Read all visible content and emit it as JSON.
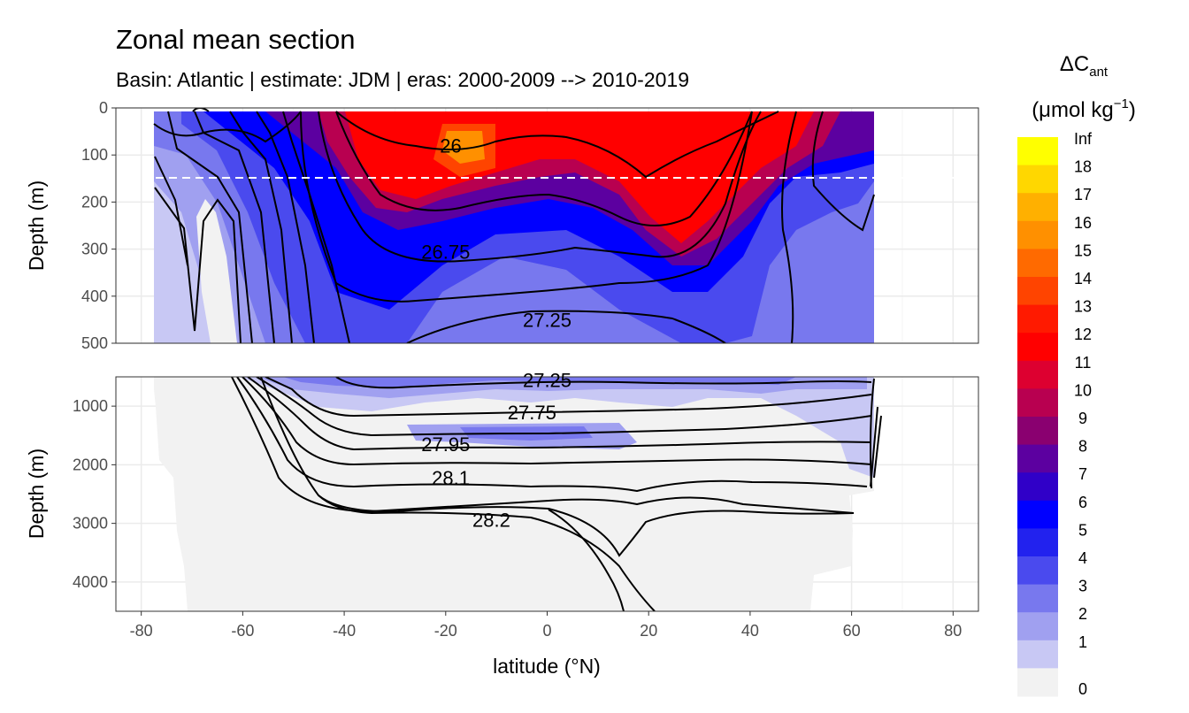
{
  "title": "Zonal mean section",
  "subtitle": "Basin: Atlantic | estimate: JDM  | eras: 2000-2009 --> 2010-2019",
  "chart_data": {
    "type": "heatmap",
    "xlabel": "latitude (°N)",
    "ylabel": "Depth (m)",
    "xlim": [
      -85,
      85
    ],
    "x_ticks": [
      -80,
      -60,
      -40,
      -20,
      0,
      20,
      40,
      60,
      80
    ],
    "panels": [
      {
        "name": "upper",
        "ylim": [
          500,
          0
        ],
        "y_ticks": [
          0,
          100,
          200,
          300,
          400,
          500
        ]
      },
      {
        "name": "lower",
        "ylim": [
          4500,
          500
        ],
        "y_ticks": [
          1000,
          2000,
          3000,
          4000
        ]
      }
    ],
    "data_extent": {
      "lat_min": -77.5,
      "lat_max": 64.5
    },
    "reference_line_depth": 150,
    "contour_labels": [
      {
        "text": "26",
        "lat": -19,
        "depth": 80,
        "panel": 0
      },
      {
        "text": "26.75",
        "lat": -20,
        "depth": 305,
        "panel": 0
      },
      {
        "text": "27.25",
        "lat": 0,
        "depth": 450,
        "panel": 0
      },
      {
        "text": "27.25",
        "lat": 0,
        "depth": 550,
        "panel": 1
      },
      {
        "text": "27.75",
        "lat": -3,
        "depth": 1100,
        "panel": 1
      },
      {
        "text": "27.95",
        "lat": -20,
        "depth": 1650,
        "panel": 1
      },
      {
        "text": "28.1",
        "lat": -19,
        "depth": 2220,
        "panel": 1
      },
      {
        "text": "28.2",
        "lat": -11,
        "depth": 2940,
        "panel": 1
      }
    ],
    "colorbar": {
      "title": "ΔC",
      "title_sub": "ant",
      "unit": "(μmol kg",
      "unit_sup": "−1",
      "unit_end": ")",
      "labels": [
        "Inf",
        "18",
        "17",
        "16",
        "15",
        "14",
        "13",
        "12",
        "11",
        "10",
        "9",
        "8",
        "7",
        "6",
        "5",
        "4",
        "3",
        "2",
        "1",
        "0"
      ],
      "colors": [
        "#ffff00",
        "#ffd700",
        "#ffb000",
        "#ff9000",
        "#ff6a00",
        "#ff4400",
        "#ff1a00",
        "#ff0000",
        "#dd0030",
        "#b80050",
        "#8a0070",
        "#5c00a0",
        "#3000c8",
        "#0000ff",
        "#2222ee",
        "#4a4aee",
        "#7878ee",
        "#a0a0f0",
        "#c8c8f4",
        "#f2f2f2"
      ]
    }
  }
}
